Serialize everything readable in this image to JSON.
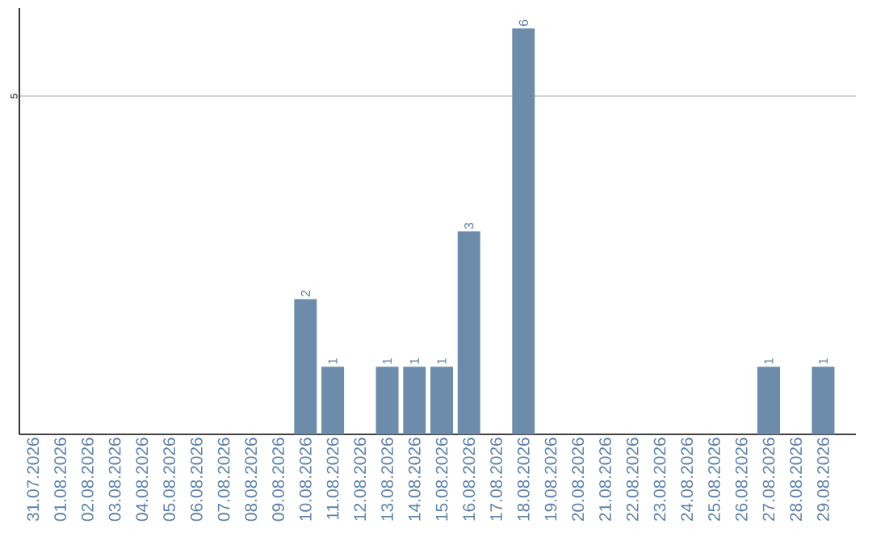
{
  "chart_data": {
    "type": "bar",
    "categories": [
      "31.07.2026",
      "01.08.2026",
      "02.08.2026",
      "03.08.2026",
      "04.08.2026",
      "05.08.2026",
      "06.08.2026",
      "07.08.2026",
      "08.08.2026",
      "09.08.2026",
      "10.08.2026",
      "11.08.2026",
      "12.08.2026",
      "13.08.2026",
      "14.08.2026",
      "15.08.2026",
      "16.08.2026",
      "17.08.2026",
      "18.08.2026",
      "19.08.2026",
      "20.08.2026",
      "21.08.2026",
      "22.08.2026",
      "23.08.2026",
      "24.08.2026",
      "25.08.2026",
      "26.08.2026",
      "27.08.2026",
      "28.08.2026",
      "29.08.2026"
    ],
    "values": [
      0,
      0,
      0,
      0,
      0,
      0,
      0,
      0,
      0,
      0,
      2,
      1,
      0,
      1,
      1,
      1,
      3,
      0,
      6,
      0,
      0,
      0,
      0,
      0,
      0,
      0,
      0,
      1,
      0,
      1
    ],
    "value_labels": [
      null,
      null,
      null,
      null,
      null,
      null,
      null,
      null,
      null,
      null,
      "2",
      "1",
      null,
      "1",
      "1",
      "1",
      "3",
      null,
      "6",
      null,
      null,
      null,
      null,
      null,
      null,
      null,
      null,
      "1",
      null,
      "1"
    ],
    "color": "#6d8cab",
    "ylim": [
      0,
      6.3
    ],
    "yticks": [
      5
    ],
    "grid": "y"
  }
}
